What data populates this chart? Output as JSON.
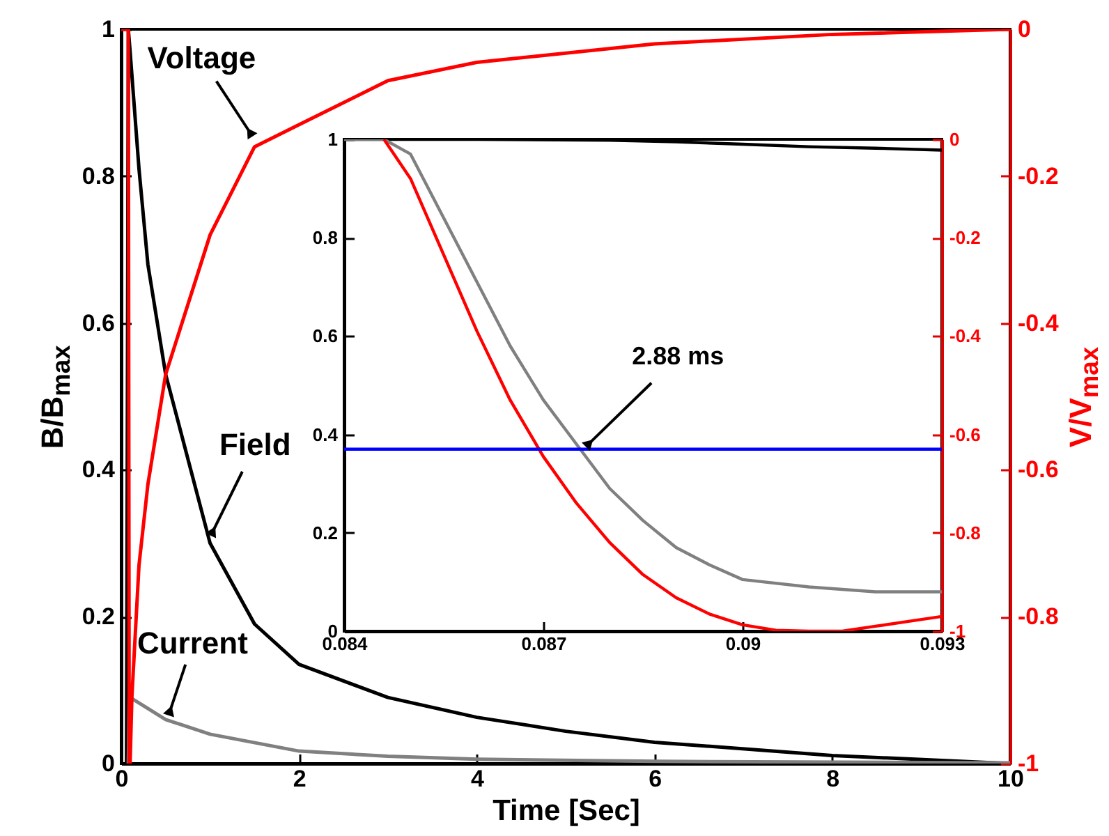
{
  "chart_data": [
    {
      "type": "line",
      "xlabel": "Time [Sec]",
      "ylabel": "B/B$_{max}$",
      "y2label": "V/V$_{max}$",
      "xlim": [
        0,
        10
      ],
      "xticks": [
        0,
        2,
        4,
        6,
        8,
        10
      ],
      "ylim": [
        0,
        1
      ],
      "yticks": [
        0,
        0.2,
        0.4,
        0.6,
        0.8,
        1
      ],
      "y2lim": [
        -1,
        0
      ],
      "y2ticks": [
        -1,
        -0.8,
        -0.6,
        -0.4,
        -0.2,
        0
      ],
      "series": [
        {
          "color": "#000000",
          "x": [
            0.06,
            0.08,
            0.1,
            0.2,
            0.3,
            0.5,
            1,
            1.5,
            2,
            3,
            4,
            5,
            6,
            8,
            10
          ],
          "values": [
            0,
            1,
            0.97,
            0.81,
            0.68,
            0.53,
            0.3,
            0.19,
            0.135,
            0.09,
            0.063,
            0.044,
            0.029,
            0.011,
            0
          ]
        },
        {
          "color": "#808080",
          "x": [
            0.08,
            0.09,
            0.1,
            0.5,
            1,
            2,
            3,
            4,
            6,
            10
          ],
          "values": [
            0,
            0.095,
            0.09,
            0.06,
            0.04,
            0.017,
            0.01,
            0.006,
            0.003,
            0.001
          ]
        },
        {
          "color": "#ff0000",
          "axis": "y2",
          "x": [
            0,
            0.08,
            0.09,
            0.1,
            0.12,
            0.2,
            0.3,
            0.5,
            1,
            1.5,
            2,
            3,
            4,
            6,
            8,
            10
          ],
          "values": [
            0,
            0,
            -1,
            -1,
            -0.91,
            -0.73,
            -0.62,
            -0.47,
            -0.28,
            -0.16,
            -0.13,
            -0.07,
            -0.045,
            -0.02,
            -0.007,
            0
          ]
        }
      ],
      "annotations": [
        {
          "text": "Voltage",
          "x": 1.5,
          "y": 0.85
        },
        {
          "text": "Field",
          "x": 0.99,
          "y": 0.306
        },
        {
          "text": "Current",
          "x": 0.52,
          "y": 0.061
        }
      ]
    },
    {
      "type": "line",
      "xlim": [
        0.084,
        0.093
      ],
      "xticks": [
        0.084,
        0.087,
        0.09,
        0.093
      ],
      "ylim": [
        0,
        1
      ],
      "yticks": [
        0,
        0.2,
        0.4,
        0.6,
        0.8,
        1
      ],
      "y2lim": [
        -1,
        0
      ],
      "y2ticks": [
        -1,
        -0.8,
        -0.6,
        -0.4,
        -0.2,
        0
      ],
      "series": [
        {
          "color": "#000000",
          "x": [
            0.084,
            0.086,
            0.088,
            0.089,
            0.09,
            0.091,
            0.092,
            0.093
          ],
          "values": [
            1,
            1,
            0.998,
            0.995,
            0.99,
            0.985,
            0.982,
            0.978
          ]
        },
        {
          "color": "#808080",
          "x": [
            0.084,
            0.0846,
            0.085,
            0.0855,
            0.086,
            0.0865,
            0.087,
            0.0875,
            0.088,
            0.0885,
            0.089,
            0.0895,
            0.09,
            0.091,
            0.092,
            0.093
          ],
          "values": [
            1,
            1,
            0.97,
            0.84,
            0.71,
            0.58,
            0.47,
            0.38,
            0.29,
            0.225,
            0.17,
            0.135,
            0.105,
            0.09,
            0.08,
            0.08
          ]
        },
        {
          "color": "#ff0000",
          "axis": "y2",
          "x": [
            0.0846,
            0.085,
            0.0855,
            0.086,
            0.0865,
            0.087,
            0.0875,
            0.088,
            0.0885,
            0.089,
            0.0895,
            0.09,
            0.0905,
            0.091,
            0.0915,
            0.092,
            0.0925,
            0.093
          ],
          "values": [
            0,
            -0.08,
            -0.235,
            -0.39,
            -0.53,
            -0.645,
            -0.74,
            -0.82,
            -0.885,
            -0.932,
            -0.965,
            -0.987,
            -0.998,
            -1,
            -1,
            -0.99,
            -0.98,
            -0.97
          ]
        }
      ],
      "ref_lines": [
        {
          "axis": "y",
          "value": 0.37,
          "color": "#0000ff"
        }
      ],
      "annotations": [
        {
          "text": "2.88 ms",
          "x": 0.0876,
          "y": 0.37
        }
      ]
    }
  ]
}
